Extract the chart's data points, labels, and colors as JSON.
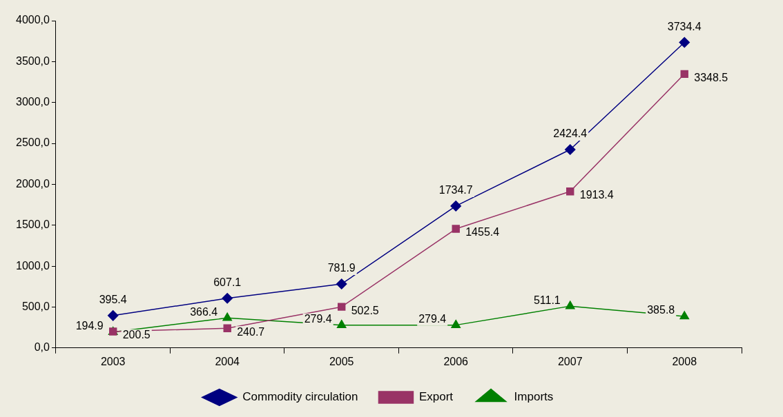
{
  "chart_data": {
    "type": "line",
    "categories": [
      "2003",
      "2004",
      "2005",
      "2006",
      "2007",
      "2008"
    ],
    "series": [
      {
        "name": "Commodity circulation",
        "color": "#000080",
        "marker": "diamond",
        "values": [
          395.4,
          607.1,
          781.9,
          1734.7,
          2424.4,
          3734.4
        ]
      },
      {
        "name": "Export",
        "color": "#993366",
        "marker": "square",
        "values": [
          200.5,
          240.7,
          502.5,
          1455.4,
          1913.4,
          3348.5
        ]
      },
      {
        "name": "Imports",
        "color": "#008000",
        "marker": "triangle",
        "values": [
          194.9,
          366.4,
          279.4,
          279.4,
          511.1,
          385.8
        ]
      }
    ],
    "ylim": [
      0,
      4000
    ],
    "yticks": [
      {
        "value": 0,
        "label": "0,0"
      },
      {
        "value": 500,
        "label": "500,0"
      },
      {
        "value": 1000,
        "label": "1000,0"
      },
      {
        "value": 1500,
        "label": "1500,0"
      },
      {
        "value": 2000,
        "label": "2000,0"
      },
      {
        "value": 2500,
        "label": "2500,0"
      },
      {
        "value": 3000,
        "label": "3000,0"
      },
      {
        "value": 3500,
        "label": "3500,0"
      },
      {
        "value": 4000,
        "label": "4000,0"
      }
    ],
    "grid": false,
    "legend": "bottom",
    "data_labels": true,
    "line_style": "solid"
  }
}
